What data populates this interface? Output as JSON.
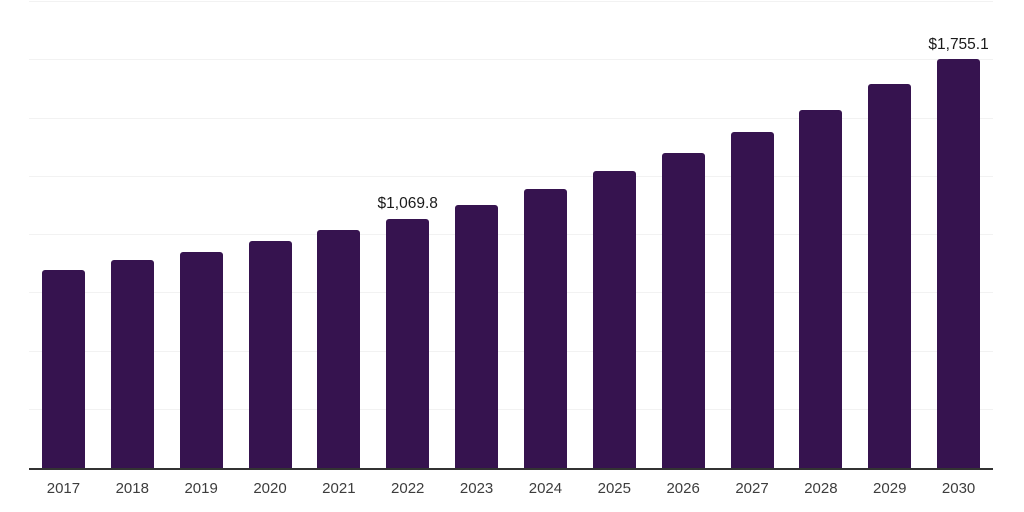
{
  "chart_data": {
    "type": "bar",
    "title": "",
    "xlabel": "",
    "ylabel": "",
    "categories": [
      "2017",
      "2018",
      "2019",
      "2020",
      "2021",
      "2022",
      "2023",
      "2024",
      "2025",
      "2026",
      "2027",
      "2028",
      "2029",
      "2030"
    ],
    "values": [
      848,
      892,
      929,
      976,
      1022,
      1069.8,
      1130,
      1198,
      1275,
      1352,
      1441,
      1535,
      1646,
      1755.1
    ],
    "labeled_points": [
      {
        "category": "2022",
        "label": "$1,069.8"
      },
      {
        "category": "2030",
        "label": "$1,755.1"
      }
    ],
    "ylim": [
      0,
      2000
    ],
    "grid": true,
    "grid_interval": 250,
    "legend": false,
    "colors": {
      "bar": "#36134f",
      "axis_line": "#333333",
      "gridline": "#f2f2f2",
      "tick_label": "#3d3d3d",
      "value_label": "#1a1a1a",
      "background": "#ffffff"
    }
  }
}
